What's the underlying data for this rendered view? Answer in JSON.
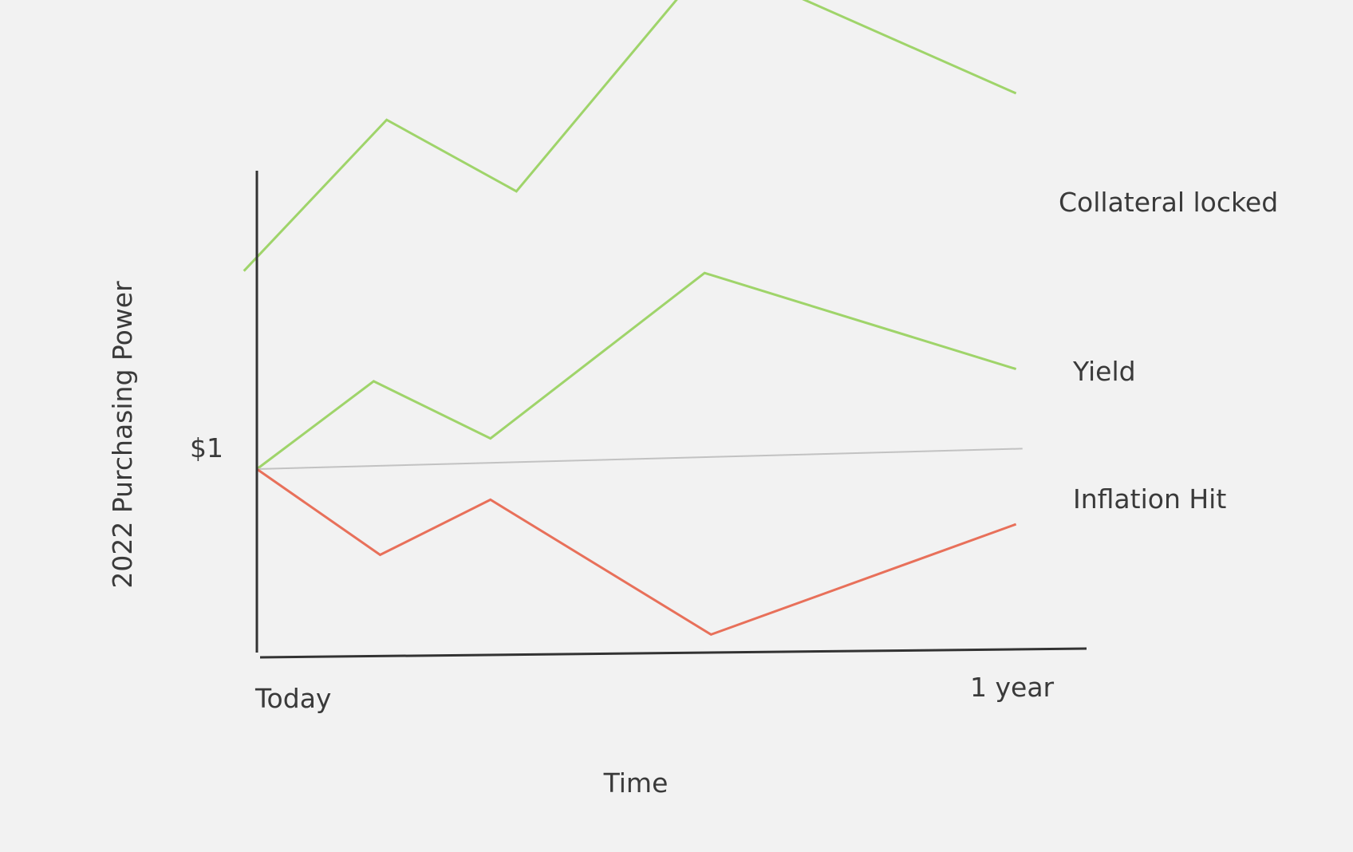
{
  "chart_data": {
    "type": "line",
    "title": "",
    "xlabel": "Time",
    "ylabel": "2022 Purchasing Power",
    "x_tick_labels": [
      "Today",
      "1 year"
    ],
    "y_tick_labels": [
      "$1"
    ],
    "xlim": [
      0,
      12
    ],
    "ylim": [
      0,
      3
    ],
    "grid": false,
    "legend": "inline labels at right end of lines",
    "series": [
      {
        "name": "Collateral locked",
        "color": "#9fd46a",
        "x": [
          -0.2,
          2.0,
          4.0,
          7.0,
          11.7
        ],
        "y": [
          1.97,
          2.71,
          2.36,
          3.5,
          2.84
        ]
      },
      {
        "name": "Yield",
        "color": "#9fd46a",
        "x": [
          0.0,
          1.8,
          3.6,
          6.9,
          11.7
        ],
        "y": [
          1.0,
          1.43,
          1.15,
          1.96,
          1.49
        ]
      },
      {
        "name": "",
        "color": "#c2c2c2",
        "x": [
          0.0,
          11.8
        ],
        "y": [
          1.0,
          1.1
        ]
      },
      {
        "name": "Inflation Hit",
        "color": "#e8705a",
        "x": [
          0.0,
          1.9,
          3.6,
          7.0,
          11.7
        ],
        "y": [
          1.0,
          0.58,
          0.85,
          0.19,
          0.73
        ]
      }
    ]
  },
  "axis_color": "#333333"
}
